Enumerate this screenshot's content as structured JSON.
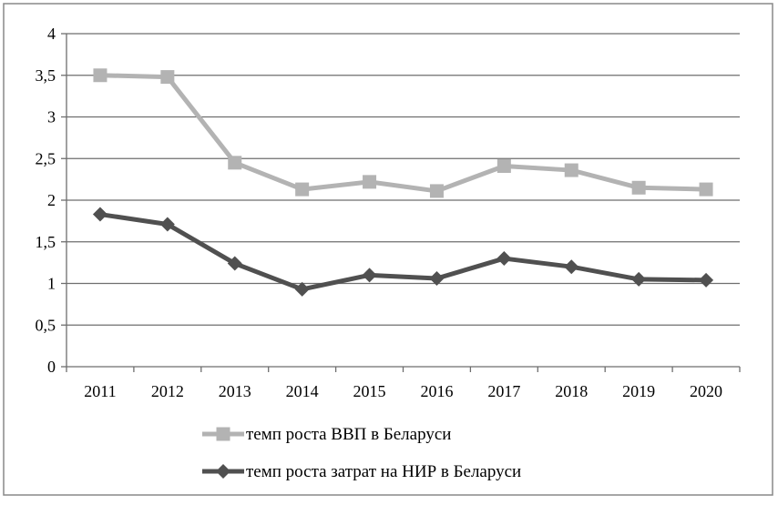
{
  "chart_data": {
    "type": "line",
    "categories": [
      "2011",
      "2012",
      "2013",
      "2014",
      "2015",
      "2016",
      "2017",
      "2018",
      "2019",
      "2020"
    ],
    "series": [
      {
        "name": "темп роста ВВП в Беларуси",
        "values": [
          3.5,
          3.48,
          2.45,
          2.13,
          2.22,
          2.11,
          2.41,
          2.36,
          2.15,
          2.13
        ],
        "color": "#b3b3b3",
        "marker": "square"
      },
      {
        "name": "темп роста затрат на НИР в Беларуси",
        "values": [
          1.83,
          1.71,
          1.24,
          0.93,
          1.1,
          1.06,
          1.3,
          1.2,
          1.05,
          1.04
        ],
        "color": "#505050",
        "marker": "diamond"
      }
    ],
    "ylim": [
      0,
      4
    ],
    "yticks": [
      0,
      0.5,
      1,
      1.5,
      2,
      2.5,
      3,
      3.5,
      4
    ],
    "ytick_labels": [
      "0",
      "0,5",
      "1",
      "1,5",
      "2",
      "2,5",
      "3",
      "3,5",
      "4"
    ],
    "grid": true,
    "legend_position": "bottom",
    "title": "",
    "xlabel": "",
    "ylabel": ""
  }
}
